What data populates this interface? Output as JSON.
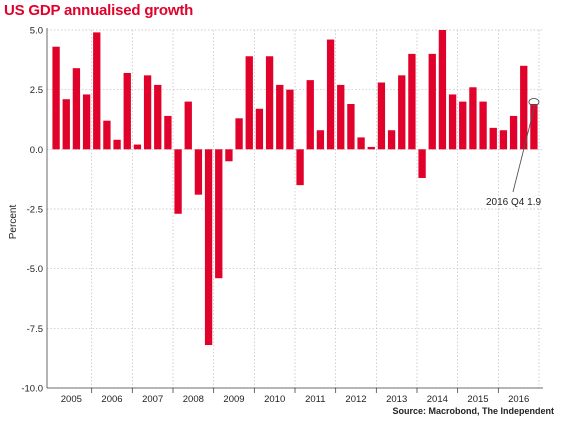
{
  "chart_data": {
    "type": "bar",
    "title": "US GDP annualised growth",
    "ylabel": "Percent",
    "xlabel": "",
    "ylim": [
      -10,
      5
    ],
    "yticks": [
      "5.0",
      "2.5",
      "0.0",
      "-2.5",
      "-5.0",
      "-7.5",
      "-10.0"
    ],
    "ytick_values": [
      5,
      2.5,
      0,
      -2.5,
      -5,
      -7.5,
      -10
    ],
    "grid": true,
    "years": [
      "2005",
      "2006",
      "2007",
      "2008",
      "2009",
      "2010",
      "2011",
      "2012",
      "2013",
      "2014",
      "2015",
      "2016"
    ],
    "quarters_per_year": 4,
    "values": [
      4.3,
      2.1,
      3.4,
      2.3,
      4.9,
      1.2,
      0.4,
      3.2,
      0.2,
      3.1,
      2.7,
      1.4,
      -2.7,
      2.0,
      -1.9,
      -8.2,
      -5.4,
      -0.5,
      1.3,
      3.9,
      1.7,
      3.9,
      2.7,
      2.5,
      -1.5,
      2.9,
      0.8,
      4.6,
      2.7,
      1.9,
      0.5,
      0.1,
      2.8,
      0.8,
      3.1,
      4.0,
      -1.2,
      4.0,
      5.0,
      2.3,
      2.0,
      2.6,
      2.0,
      0.9,
      0.8,
      1.4,
      3.5,
      1.9
    ],
    "bar_color": "#e0022a",
    "annotation": {
      "text": "2016 Q4 1.9",
      "index": 47,
      "value": 1.9
    },
    "source": "Source: Macrobond, The Independent"
  }
}
